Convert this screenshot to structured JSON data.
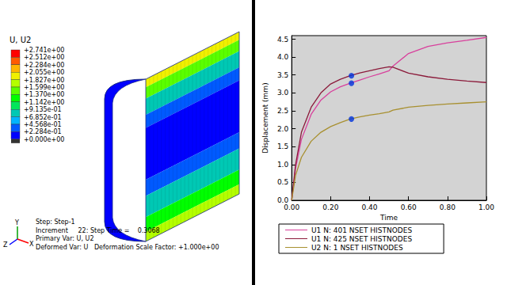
{
  "chart_data": {
    "type": "line",
    "x_label": "Time",
    "y_label": "Displacement (mm)",
    "xlim": [
      0,
      1
    ],
    "xticks": [
      {
        "value": 0,
        "label": "0.00"
      },
      {
        "value": 0.2,
        "label": "0.20"
      },
      {
        "value": 0.4,
        "label": "0.40"
      },
      {
        "value": 0.6,
        "label": "0.60"
      },
      {
        "value": 0.8,
        "label": "0.80"
      },
      {
        "value": 1,
        "label": "1.00"
      }
    ],
    "ylim": [
      0,
      4.6
    ],
    "yticks": [
      {
        "value": 0,
        "label": "0.0"
      },
      {
        "value": 0.5,
        "label": "0.5"
      },
      {
        "value": 1,
        "label": "1.0"
      },
      {
        "value": 1.5,
        "label": "1.5"
      },
      {
        "value": 2,
        "label": "2.0"
      },
      {
        "value": 2.5,
        "label": "2.5"
      },
      {
        "value": 3,
        "label": "3.0"
      },
      {
        "value": 3.5,
        "label": "3.5"
      },
      {
        "value": 4,
        "label": "4.0"
      },
      {
        "value": 4.5,
        "label": "4.5"
      }
    ],
    "grid": false,
    "legend": "bottom",
    "x": [
      0,
      0.02,
      0.05,
      0.1,
      0.15,
      0.2,
      0.25,
      0.3,
      0.35,
      0.4,
      0.45,
      0.5,
      0.52,
      0.6,
      0.7,
      0.8,
      0.9,
      1.0
    ],
    "series": [
      {
        "name": "U1 N: 401 NSET HISTNODES",
        "color": "#d8409c",
        "values": [
          0,
          0.9,
          1.7,
          2.4,
          2.8,
          3.03,
          3.17,
          3.27,
          3.36,
          3.45,
          3.53,
          3.62,
          3.75,
          4.1,
          4.3,
          4.4,
          4.47,
          4.55
        ],
        "marker_point": [
          0.3068,
          3.27
        ]
      },
      {
        "name": "U1 N: 425 NSET HISTNODES",
        "color": "#8b1a3a",
        "values": [
          0,
          1.0,
          1.9,
          2.6,
          3.0,
          3.25,
          3.38,
          3.48,
          3.56,
          3.62,
          3.68,
          3.73,
          3.72,
          3.55,
          3.45,
          3.38,
          3.33,
          3.29
        ],
        "marker_point": [
          0.3068,
          3.48
        ]
      },
      {
        "name": "U2 N: 1 NSET HISTNODES",
        "color": "#a89030",
        "values": [
          0,
          0.7,
          1.2,
          1.65,
          1.9,
          2.06,
          2.17,
          2.27,
          2.33,
          2.38,
          2.42,
          2.47,
          2.52,
          2.6,
          2.65,
          2.69,
          2.72,
          2.75
        ],
        "marker_point": [
          0.3068,
          2.27
        ]
      }
    ],
    "marker_color": "#0033dd"
  },
  "contour_panel": {
    "title": "U, U2",
    "legend_labels": [
      "+2.741e+00",
      "+2.512e+00",
      "+2.284e+00",
      "+2.055e+00",
      "+1.827e+00",
      "+1.599e+00",
      "+1.370e+00",
      "+1.142e+00",
      "+9.135e-01",
      "+6.852e-01",
      "+4.568e-01",
      "+2.284e-01",
      "+0.000e+00"
    ],
    "colors": [
      "#ff0000",
      "#ff5a00",
      "#ffb400",
      "#f0f000",
      "#b4ff00",
      "#5aff00",
      "#00ff00",
      "#00e65a",
      "#00c8b4",
      "#00b4ff",
      "#005aff",
      "#0000ff"
    ],
    "triad_labels": [
      "Y",
      "Z",
      "X"
    ],
    "info_lines": [
      "Step: Step-1",
      "Increment     22: Step Time =    0.3068",
      "Primary Var: U, U2",
      "Deformed Var: U   Deformation Scale Factor: +1.000e+00"
    ]
  }
}
